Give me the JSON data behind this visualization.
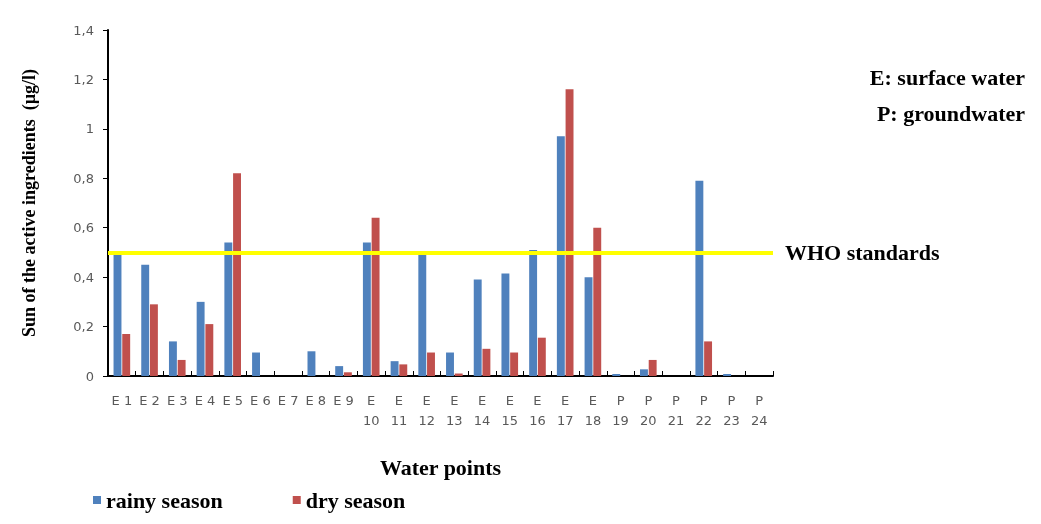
{
  "chart_data": {
    "type": "bar",
    "xlabel": "Water points",
    "ylabel": "Sun of the active ingredients  (µg/l)",
    "categories": [
      "E 1",
      "E 2",
      "E 3",
      "E 4",
      "E 5",
      "E 6",
      "E 7",
      "E 8",
      "E 9",
      "E 10",
      "E 11",
      "E 12",
      "E 13",
      "E 14",
      "E 15",
      "E 16",
      "E 17",
      "E 18",
      "P 19",
      "P 20",
      "P 21",
      "P 22",
      "P 23",
      "P 24"
    ],
    "series": [
      {
        "name": "rainy season",
        "color": "#4f81bd",
        "values": [
          0.49,
          0.45,
          0.14,
          0.3,
          0.54,
          0.095,
          0,
          0.1,
          0.04,
          0.54,
          0.06,
          0.49,
          0.095,
          0.39,
          0.415,
          0.51,
          0.97,
          0.4,
          0.008,
          0.027,
          0,
          0.79,
          0.008,
          0
        ]
      },
      {
        "name": "dry season",
        "color": "#c0504d",
        "values": [
          0.17,
          0.29,
          0.065,
          0.21,
          0.82,
          0,
          0,
          0,
          0.015,
          0.64,
          0.047,
          0.095,
          0.01,
          0.11,
          0.095,
          0.155,
          1.16,
          0.6,
          0,
          0.065,
          0,
          0.14,
          0,
          0
        ]
      }
    ],
    "ylim": [
      0,
      1.4
    ],
    "yticks": [
      0,
      {
        "value": 0.2,
        "label": "0,2"
      },
      {
        "value": 0.4,
        "label": "0,4"
      },
      {
        "value": 0.6,
        "label": "0,6"
      },
      {
        "value": 0.8,
        "label": "0,8"
      },
      1,
      {
        "value": 1.2,
        "label": "1,2"
      },
      {
        "value": 1.4,
        "label": "1,4"
      }
    ],
    "ref_lines": [
      {
        "axis": "y",
        "value": 0.5,
        "label": "WHO standards",
        "color": "#ffff00"
      }
    ],
    "annotations": [
      "E: surface water",
      "P: groundwater"
    ],
    "grid": false,
    "legend": "bottom"
  }
}
